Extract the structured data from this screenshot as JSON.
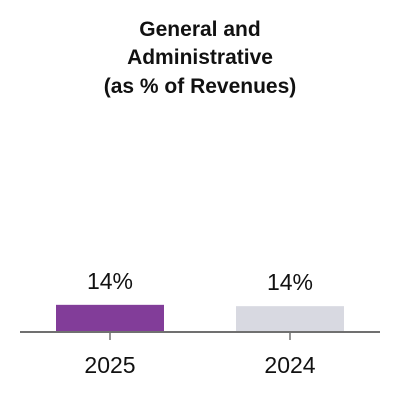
{
  "chart_data": {
    "type": "bar",
    "title_lines": [
      "General and",
      "Administrative",
      "(as % of Revenues)"
    ],
    "xlabel": "",
    "ylabel": "",
    "categories": [
      "2025",
      "2024"
    ],
    "values": [
      14.3,
      13.6
    ],
    "value_labels": [
      "14%",
      "14%"
    ],
    "colors": [
      "#823D99",
      "#D8D9E1"
    ],
    "axis_color": "#707070",
    "ylim": [
      0,
      100
    ],
    "grid": false,
    "legend": "none"
  }
}
